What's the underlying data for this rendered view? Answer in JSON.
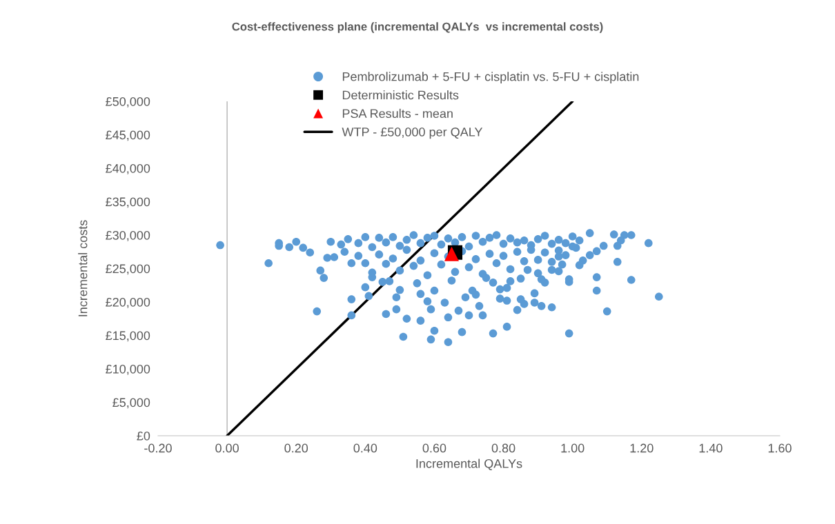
{
  "chart_data": {
    "type": "scatter",
    "title": "Cost-effectiveness plane (incremental QALYs  vs incremental costs)",
    "xlabel": "Incremental QALYs",
    "ylabel": "Incremental costs",
    "xlim": [
      -0.2,
      1.6
    ],
    "ylim": [
      0,
      50000
    ],
    "xticks": [
      {
        "value": -0.2,
        "label": "-0.20"
      },
      {
        "value": 0,
        "label": "0.00"
      },
      {
        "value": 0.2,
        "label": "0.20"
      },
      {
        "value": 0.4,
        "label": "0.40"
      },
      {
        "value": 0.6,
        "label": "0.60"
      },
      {
        "value": 0.8,
        "label": "0.80"
      },
      {
        "value": 1.0,
        "label": "1.00"
      },
      {
        "value": 1.2,
        "label": "1.20"
      },
      {
        "value": 1.4,
        "label": "1.40"
      },
      {
        "value": 1.6,
        "label": "1.60"
      }
    ],
    "yticks": [
      {
        "value": 0,
        "label": "£0"
      },
      {
        "value": 5000,
        "label": "£5,000"
      },
      {
        "value": 10000,
        "label": "£10,000"
      },
      {
        "value": 15000,
        "label": "£15,000"
      },
      {
        "value": 20000,
        "label": "£20,000"
      },
      {
        "value": 25000,
        "label": "£25,000"
      },
      {
        "value": 30000,
        "label": "£30,000"
      },
      {
        "value": 35000,
        "label": "£35,000"
      },
      {
        "value": 40000,
        "label": "£40,000"
      },
      {
        "value": 45000,
        "label": "£45,000"
      },
      {
        "value": 50000,
        "label": "£50,000"
      }
    ],
    "grid": false,
    "legend": "top",
    "ref_lines": [
      {
        "axis": "x",
        "value": 0,
        "color": "#bfbfbf"
      }
    ],
    "series": [
      {
        "name": "Pembrolizumab + 5-FU + cisplatin vs. 5-FU + cisplatin",
        "type": "scatter",
        "marker": "circle",
        "color": "#5b9bd5",
        "x": [
          -0.02,
          0.12,
          0.15,
          0.15,
          0.18,
          0.2,
          0.22,
          0.24,
          0.27,
          0.28,
          0.26,
          0.29,
          0.31,
          0.36,
          0.36,
          0.36,
          0.4,
          0.41,
          0.42,
          0.47,
          0.5,
          0.49,
          0.49,
          0.46,
          0.52,
          0.56,
          0.51,
          0.59,
          0.64,
          0.6,
          0.68,
          0.59,
          0.64,
          0.7,
          0.73,
          0.69,
          0.63,
          0.67,
          0.56,
          0.58,
          0.6,
          0.72,
          0.71,
          1.12,
          1.15,
          1.17,
          1.22,
          1.14,
          1.13,
          1.09,
          1.07,
          1.05,
          1.03,
          1.02,
          1.13,
          1.07,
          1.07,
          1.17,
          1.25,
          1.1,
          0.99,
          0.99,
          0.99,
          0.96,
          0.97,
          0.94,
          0.91,
          0.89,
          0.89,
          0.86,
          0.85,
          0.84,
          0.81,
          0.77,
          0.81,
          0.79,
          0.74,
          0.79,
          0.81,
          0.85,
          0.87,
          0.82,
          0.77,
          0.92,
          0.91,
          1.05,
          1.01,
          0.96,
          0.94,
          0.9,
          0.3,
          0.33,
          0.35,
          0.38,
          0.4,
          0.42,
          0.44,
          0.46,
          0.48,
          0.5,
          0.52,
          0.54,
          0.56,
          0.58,
          0.6,
          0.62,
          0.64,
          0.66,
          0.68,
          0.7,
          0.72,
          0.74,
          0.76,
          0.78,
          0.8,
          0.82,
          0.84,
          0.86,
          0.88,
          0.9,
          0.92,
          0.94,
          0.96,
          0.98,
          1.0,
          1.02,
          0.34,
          0.38,
          0.4,
          0.42,
          0.44,
          0.46,
          0.48,
          0.5,
          0.52,
          0.54,
          0.56,
          0.58,
          0.6,
          0.62,
          0.64,
          0.66,
          0.68,
          0.7,
          0.72,
          0.74,
          0.76,
          0.78,
          0.8,
          0.82,
          0.84,
          0.86,
          0.88,
          0.9,
          0.92,
          0.94,
          0.96,
          0.98,
          1.0,
          0.45,
          0.55,
          0.65,
          0.75
        ],
        "values": [
          28500,
          25800,
          28800,
          28400,
          28200,
          29000,
          28100,
          27400,
          24700,
          23600,
          18600,
          26600,
          26700,
          25800,
          20400,
          18000,
          22200,
          20900,
          23700,
          23100,
          21800,
          20700,
          18900,
          18200,
          17500,
          17200,
          14800,
          14400,
          14000,
          15700,
          15500,
          18900,
          17700,
          18000,
          19400,
          20700,
          19900,
          18700,
          21200,
          20100,
          21700,
          21100,
          21700,
          30100,
          30000,
          30000,
          28800,
          29200,
          28400,
          28400,
          27600,
          27000,
          26200,
          25500,
          26000,
          23700,
          21700,
          23300,
          20800,
          18600,
          15300,
          23400,
          23000,
          24600,
          25600,
          19200,
          19400,
          19900,
          21300,
          19700,
          20400,
          18800,
          16300,
          15300,
          20200,
          20500,
          18000,
          21900,
          22100,
          23500,
          24800,
          23100,
          22900,
          22900,
          23400,
          30300,
          28100,
          26800,
          24800,
          24300,
          29000,
          28600,
          29400,
          28800,
          29700,
          28200,
          29600,
          28900,
          29700,
          28400,
          29300,
          30000,
          28800,
          29600,
          29900,
          28600,
          29500,
          28900,
          29700,
          28300,
          29900,
          29000,
          29600,
          30000,
          28700,
          29500,
          28900,
          29200,
          28500,
          29400,
          29900,
          28700,
          29300,
          28800,
          29800,
          29200,
          27500,
          26900,
          25800,
          24400,
          27100,
          25700,
          26500,
          24700,
          27800,
          25400,
          26200,
          24000,
          27300,
          25600,
          26800,
          24500,
          27600,
          25200,
          26400,
          24200,
          27200,
          25800,
          26900,
          24900,
          27500,
          26100,
          27800,
          26300,
          27400,
          26000,
          27700,
          27000,
          28300,
          23000,
          22800,
          23200,
          23600
        ]
      },
      {
        "name": "Deterministic Results",
        "type": "scatter",
        "marker": "square",
        "color": "#000000",
        "x": [
          0.66
        ],
        "values": [
          27400
        ]
      },
      {
        "name": "PSA Results - mean",
        "type": "scatter",
        "marker": "triangle",
        "color": "#ff0000",
        "x": [
          0.65
        ],
        "values": [
          27200
        ]
      },
      {
        "name": "WTP - £50,000 per QALY",
        "type": "line",
        "line_style": "solid",
        "color": "#000000",
        "x": [
          0,
          1.0
        ],
        "values": [
          0,
          50000
        ]
      }
    ]
  }
}
